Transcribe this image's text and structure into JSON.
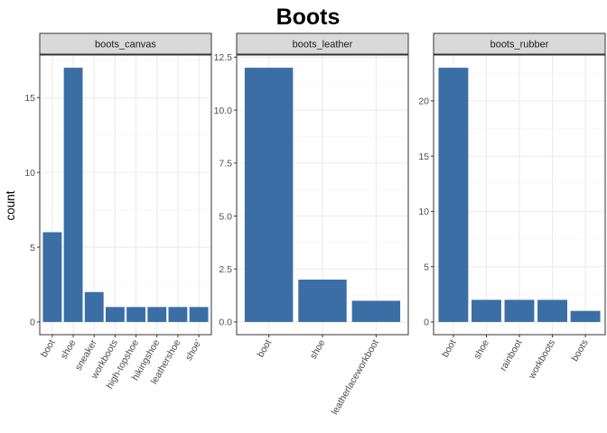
{
  "chart_data": {
    "type": "bar",
    "title": "Boots",
    "xlabel": "",
    "ylabel": "count",
    "grid": true,
    "colors": {
      "bar": "#3a6ea5",
      "strip_fill": "#d9d9d9",
      "panel_border": "#333333",
      "grid": "#ebebeb"
    },
    "facets": [
      {
        "name": "boots_canvas",
        "categories": [
          "boot",
          "shoe",
          "sneaker",
          "workboots",
          "high-topshoe",
          "hikingshoe",
          "leathershoe",
          "shoe'"
        ],
        "values": [
          6,
          17,
          2,
          1,
          1,
          1,
          1,
          1
        ],
        "ylim": [
          -0.85,
          17.85
        ],
        "yticks": [
          0,
          5,
          10,
          15
        ],
        "ytick_labels": [
          "0",
          "5",
          "10",
          "15"
        ]
      },
      {
        "name": "boots_leather",
        "categories": [
          "boot",
          "shoe",
          "leatherlaceworkboot"
        ],
        "values": [
          12,
          2,
          1
        ],
        "ylim": [
          -0.6,
          12.6
        ],
        "yticks": [
          0,
          2.5,
          5,
          7.5,
          10,
          12.5
        ],
        "ytick_labels": [
          "0.0",
          "2.5",
          "5.0",
          "7.5",
          "10.0",
          "12.5"
        ]
      },
      {
        "name": "boots_rubber",
        "categories": [
          "boot",
          "shoe",
          "rainboot",
          "workboots",
          "boots"
        ],
        "values": [
          23,
          2,
          2,
          2,
          1
        ],
        "ylim": [
          -1.15,
          24.15
        ],
        "yticks": [
          0,
          5,
          10,
          15,
          20
        ],
        "ytick_labels": [
          "0",
          "5",
          "10",
          "15",
          "20"
        ]
      }
    ]
  }
}
